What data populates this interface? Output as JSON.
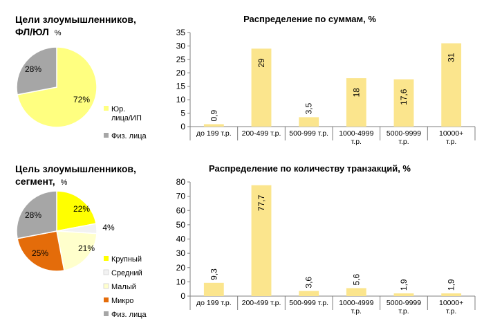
{
  "chart_data": [
    {
      "id": "pie1",
      "type": "pie",
      "title": "Цели злоумышленников,",
      "title_line2": "ФЛ/ЮЛ",
      "title_unit": "%",
      "slices": [
        {
          "label": "Юр. лица/ИП",
          "legend_lines": [
            "Юр.",
            "лица/ИП"
          ],
          "value": 72,
          "value_label": "72%",
          "color": "#ffff80"
        },
        {
          "label": "Физ. лица",
          "legend_lines": [
            "Физ. лица"
          ],
          "value": 28,
          "value_label": "28%",
          "color": "#a6a6a6"
        }
      ],
      "legend_position": "right"
    },
    {
      "id": "bar1",
      "type": "bar",
      "title": "Распределение по суммам, %",
      "categories": [
        [
          "до 199 т.р."
        ],
        [
          "200-499 т.р."
        ],
        [
          "500-999 т.р."
        ],
        [
          "1000-4999",
          "т.р."
        ],
        [
          "5000-9999",
          "т.р."
        ],
        [
          "10000+",
          "т.р."
        ]
      ],
      "values": [
        0.9,
        29,
        3.5,
        18,
        17.6,
        31
      ],
      "value_labels": [
        "0,9",
        "29",
        "3,5",
        "18",
        "17,6",
        "31"
      ],
      "ylim": [
        0,
        35
      ],
      "yticks": [
        0,
        5,
        10,
        15,
        20,
        25,
        30,
        35
      ],
      "bar_color": "#fbe58d",
      "grid": false
    },
    {
      "id": "pie2",
      "type": "pie",
      "title": "Цель злоумышленников,",
      "title_line2": "сегмент,",
      "title_unit": "%",
      "slices": [
        {
          "label": "Крупный",
          "value": 22,
          "value_label": "22%",
          "color": "#ffff00"
        },
        {
          "label": "Средний",
          "value": 4,
          "value_label": "4%",
          "color": "#f2f2f2"
        },
        {
          "label": "Малый",
          "value": 21,
          "value_label": "21%",
          "color": "#ffffcc"
        },
        {
          "label": "Микро",
          "value": 25,
          "value_label": "25%",
          "color": "#e46c0a"
        },
        {
          "label": "Физ. лица",
          "value": 28,
          "value_label": "28%",
          "color": "#a6a6a6"
        }
      ],
      "legend_position": "bottom-right"
    },
    {
      "id": "bar2",
      "type": "bar",
      "title": "Распределение по количеству транзакций, %",
      "categories": [
        [
          "до 199 т.р."
        ],
        [
          "200-499 т.р."
        ],
        [
          "500-999 т.р."
        ],
        [
          "1000-4999",
          "т.р."
        ],
        [
          "5000-9999",
          "т.р."
        ],
        [
          "10000+",
          "т.р."
        ]
      ],
      "values": [
        9.3,
        77.7,
        3.6,
        5.6,
        1.9,
        1.9
      ],
      "value_labels": [
        "9,3",
        "77,7",
        "3,6",
        "5,6",
        "1,9",
        "1,9"
      ],
      "ylim": [
        0,
        80
      ],
      "yticks": [
        0,
        10,
        20,
        30,
        40,
        50,
        60,
        70,
        80
      ],
      "bar_color": "#fbe58d",
      "grid": false
    }
  ]
}
